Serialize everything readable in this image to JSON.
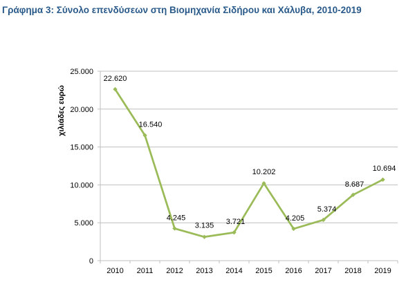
{
  "chart_data": {
    "type": "line",
    "title": "Γράφημα 3: Σύνολο επενδύσεων στη Βιομηχανία Σιδήρου και Χάλυβα, 2010-2019",
    "xlabel": "",
    "ylabel": "χιλιάδες ευρώ",
    "x": [
      "2010",
      "2011",
      "2012",
      "2013",
      "2014",
      "2015",
      "2016",
      "2017",
      "2018",
      "2019"
    ],
    "values": [
      22620,
      16540,
      4245,
      3135,
      3721,
      10202,
      4205,
      5374,
      8687,
      10694
    ],
    "data_labels": [
      "22.620",
      "16.540",
      "4.245",
      "3.135",
      "3.721",
      "10.202",
      "4.205",
      "5.374",
      "8.687",
      "10.694"
    ],
    "ylim": [
      0,
      25000
    ],
    "yticks": [
      0,
      5000,
      10000,
      15000,
      20000,
      25000
    ],
    "ytick_labels": [
      "0",
      "5.000",
      "10.000",
      "15.000",
      "20.000",
      "25.000"
    ],
    "grid": true,
    "legend": "none",
    "colors": {
      "line": "#9bbb59",
      "grid": "#bfbfbf",
      "title": "#2a5a8a"
    }
  }
}
